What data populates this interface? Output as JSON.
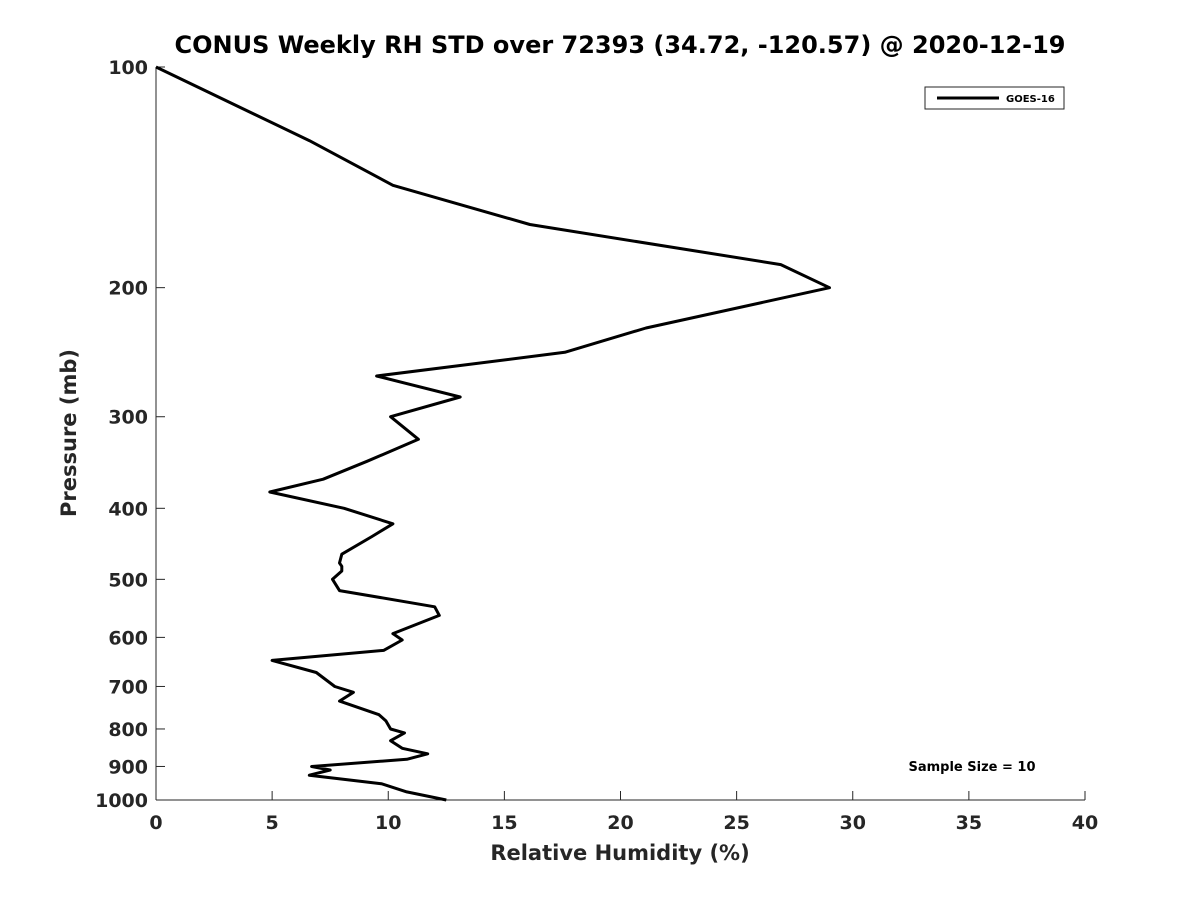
{
  "chart_data": {
    "type": "line",
    "title": "CONUS Weekly RH STD over 72393 (34.72, -120.57) @ 2020-12-19",
    "xlabel": "Relative Humidity (%)",
    "ylabel": "Pressure (mb)",
    "xlim": [
      0,
      40
    ],
    "ylim": [
      100,
      1000
    ],
    "y_scale": "log",
    "y_reversed": true,
    "x_ticks": [
      0,
      5,
      10,
      15,
      20,
      25,
      30,
      35,
      40
    ],
    "y_ticks": [
      100,
      200,
      300,
      400,
      500,
      600,
      700,
      800,
      900,
      1000
    ],
    "grid": false,
    "legend_position": "top-right",
    "annotation": "Sample Size = 10",
    "series": [
      {
        "name": "GOES-16",
        "color": "#000000",
        "points": [
          [
            12.5,
            1000
          ],
          [
            10.8,
            975
          ],
          [
            9.7,
            950
          ],
          [
            6.6,
            925
          ],
          [
            7.5,
            910
          ],
          [
            6.7,
            900
          ],
          [
            10.8,
            880
          ],
          [
            11.7,
            865
          ],
          [
            10.6,
            850
          ],
          [
            10.1,
            830
          ],
          [
            10.7,
            810
          ],
          [
            10.1,
            800
          ],
          [
            9.9,
            780
          ],
          [
            9.6,
            765
          ],
          [
            7.9,
            733
          ],
          [
            8.5,
            713
          ],
          [
            7.7,
            700
          ],
          [
            6.9,
            670
          ],
          [
            5.0,
            645
          ],
          [
            9.8,
            625
          ],
          [
            10.6,
            605
          ],
          [
            10.2,
            593
          ],
          [
            12.2,
            560
          ],
          [
            12.0,
            545
          ],
          [
            7.9,
            518
          ],
          [
            7.6,
            500
          ],
          [
            8.0,
            487
          ],
          [
            8.0,
            480
          ],
          [
            7.9,
            475
          ],
          [
            8.0,
            462
          ],
          [
            9.3,
            437
          ],
          [
            10.2,
            420
          ],
          [
            8.1,
            400
          ],
          [
            4.9,
            380
          ],
          [
            7.2,
            365
          ],
          [
            9.1,
            345
          ],
          [
            11.3,
            322
          ],
          [
            10.1,
            300
          ],
          [
            13.1,
            282
          ],
          [
            9.5,
            264
          ],
          [
            17.6,
            245
          ],
          [
            21.1,
            227
          ],
          [
            29.0,
            200
          ],
          [
            26.9,
            186
          ],
          [
            16.1,
            164
          ],
          [
            10.2,
            145
          ],
          [
            6.6,
            126
          ],
          [
            0.0,
            100
          ]
        ]
      }
    ]
  }
}
